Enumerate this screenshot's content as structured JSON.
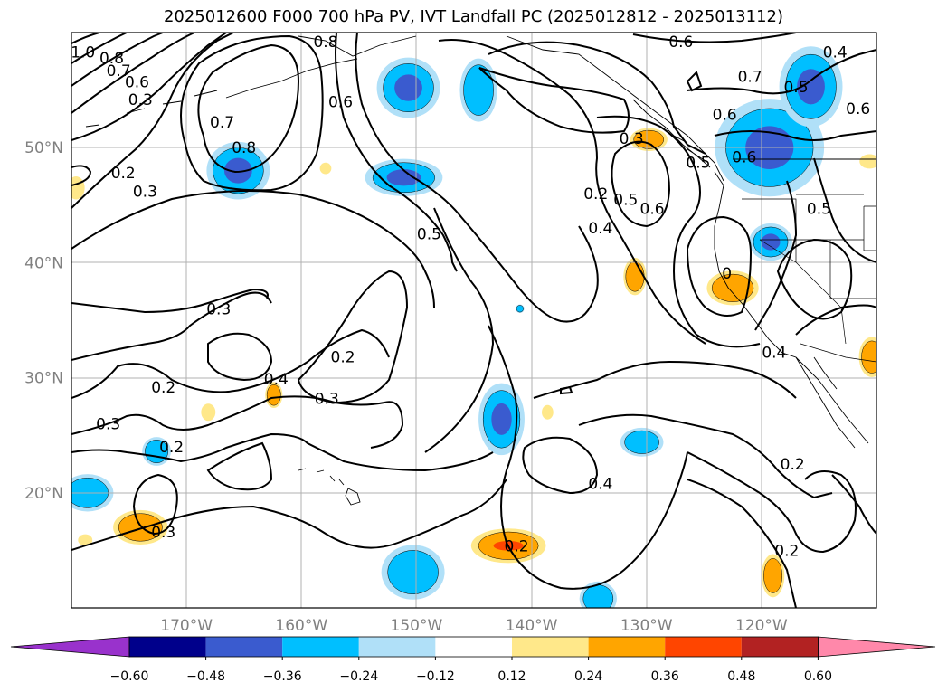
{
  "title": "2025012600 F000 700 hPa PV, IVT Landfall PC (2025012812 - 2025013112)",
  "map": {
    "lon_range": [
      -180,
      -110
    ],
    "lat_range": [
      10,
      60
    ],
    "lat_ticks": [
      {
        "value": 50,
        "label": "50°N"
      },
      {
        "value": 40,
        "label": "40°N"
      },
      {
        "value": 30,
        "label": "30°N"
      },
      {
        "value": 20,
        "label": "20°N"
      }
    ],
    "lon_ticks": [
      {
        "value": -170,
        "label": "170°W"
      },
      {
        "value": -160,
        "label": "160°W"
      },
      {
        "value": -150,
        "label": "150°W"
      },
      {
        "value": -140,
        "label": "140°W"
      },
      {
        "value": -130,
        "label": "130°W"
      },
      {
        "value": -120,
        "label": "120°W"
      }
    ],
    "gridlines": true,
    "contour_labels": [
      {
        "text": "1.0",
        "lon": -179.0,
        "lat": 58.3
      },
      {
        "text": "0.8",
        "lon": -176.5,
        "lat": 57.8
      },
      {
        "text": "0.7",
        "lon": -175.9,
        "lat": 56.7
      },
      {
        "text": "0.6",
        "lon": -174.3,
        "lat": 55.7
      },
      {
        "text": "0.3",
        "lon": -174.0,
        "lat": 54.2
      },
      {
        "text": "0.8",
        "lon": -157.9,
        "lat": 59.2
      },
      {
        "text": "0.6",
        "lon": -156.6,
        "lat": 54.0
      },
      {
        "text": "0.7",
        "lon": -166.9,
        "lat": 52.2
      },
      {
        "text": "0.8",
        "lon": -165.0,
        "lat": 50.0
      },
      {
        "text": "0.2",
        "lon": -175.5,
        "lat": 47.8
      },
      {
        "text": "0.3",
        "lon": -173.6,
        "lat": 46.2
      },
      {
        "text": "0.5",
        "lon": -148.9,
        "lat": 42.5
      },
      {
        "text": "0.3",
        "lon": -131.3,
        "lat": 50.8
      },
      {
        "text": "0.2",
        "lon": -134.4,
        "lat": 46.0
      },
      {
        "text": "0.4",
        "lon": -134.0,
        "lat": 43.0
      },
      {
        "text": "0.5",
        "lon": -131.8,
        "lat": 45.5
      },
      {
        "text": "0.6",
        "lon": -129.5,
        "lat": 44.7
      },
      {
        "text": "0.6",
        "lon": -127.0,
        "lat": 59.2
      },
      {
        "text": "0.7",
        "lon": -121.0,
        "lat": 56.2
      },
      {
        "text": "0.6",
        "lon": -123.2,
        "lat": 52.9
      },
      {
        "text": "0.5",
        "lon": -125.5,
        "lat": 48.7
      },
      {
        "text": "0.6",
        "lon": -121.5,
        "lat": 49.2
      },
      {
        "text": "0.5",
        "lon": -117.0,
        "lat": 55.3
      },
      {
        "text": "0.4",
        "lon": -113.6,
        "lat": 58.3
      },
      {
        "text": "0.6",
        "lon": -111.6,
        "lat": 53.4
      },
      {
        "text": "0.5",
        "lon": -115.0,
        "lat": 44.7
      },
      {
        "text": "0.3",
        "lon": -167.2,
        "lat": 36.0
      },
      {
        "text": "0.2",
        "lon": -156.4,
        "lat": 31.8
      },
      {
        "text": "0.4",
        "lon": -162.2,
        "lat": 29.9
      },
      {
        "text": "0.3",
        "lon": -157.8,
        "lat": 28.2
      },
      {
        "text": "0.2",
        "lon": -172.0,
        "lat": 29.2
      },
      {
        "text": "0.3",
        "lon": -176.8,
        "lat": 26.0
      },
      {
        "text": "0.2",
        "lon": -171.3,
        "lat": 24.0
      },
      {
        "text": "0.3",
        "lon": -172.0,
        "lat": 16.6
      },
      {
        "text": "0.2",
        "lon": -141.3,
        "lat": 15.4
      },
      {
        "text": "0.4",
        "lon": -134.0,
        "lat": 20.8
      },
      {
        "text": "0.4",
        "lon": -118.9,
        "lat": 32.2
      },
      {
        "text": "0.2",
        "lon": -117.3,
        "lat": 22.5
      },
      {
        "text": "0.2",
        "lon": -117.8,
        "lat": 15.0
      },
      {
        "text": "0",
        "lon": -123.0,
        "lat": 39.1
      }
    ],
    "shading": [
      {
        "lon": -150.7,
        "lat": 55.2,
        "rx": 2.2,
        "ry": 2.1,
        "level": -0.48
      },
      {
        "lon": -144.6,
        "lat": 55.0,
        "rx": 1.3,
        "ry": 2.2,
        "level": -0.36
      },
      {
        "lon": -165.5,
        "lat": 48.0,
        "rx": 2.2,
        "ry": 2.0,
        "level": -0.48
      },
      {
        "lon": -151.1,
        "lat": 47.4,
        "rx": 2.7,
        "ry": 1.3,
        "level": -0.48
      },
      {
        "lon": -119.3,
        "lat": 50.0,
        "rx": 3.8,
        "ry": 3.4,
        "level": -0.48
      },
      {
        "lon": -115.7,
        "lat": 55.3,
        "rx": 2.2,
        "ry": 2.8,
        "level": -0.48
      },
      {
        "lon": -119.2,
        "lat": 41.8,
        "rx": 1.5,
        "ry": 1.3,
        "level": -0.48
      },
      {
        "lon": -142.6,
        "lat": 26.4,
        "rx": 1.6,
        "ry": 2.5,
        "level": -0.48
      },
      {
        "lon": -130.4,
        "lat": 24.4,
        "rx": 1.5,
        "ry": 1.0,
        "level": -0.36
      },
      {
        "lon": -172.6,
        "lat": 23.6,
        "rx": 1.0,
        "ry": 1.0,
        "level": -0.36
      },
      {
        "lon": -178.6,
        "lat": 20.0,
        "rx": 1.8,
        "ry": 1.3,
        "level": -0.36
      },
      {
        "lon": -150.3,
        "lat": 13.1,
        "rx": 2.2,
        "ry": 1.9,
        "level": -0.36
      },
      {
        "lon": -134.2,
        "lat": 10.8,
        "rx": 1.3,
        "ry": 1.2,
        "level": -0.36
      },
      {
        "lon": -142.0,
        "lat": 15.4,
        "rx": 2.6,
        "ry": 1.2,
        "level": 0.48
      },
      {
        "lon": -174.0,
        "lat": 17.0,
        "rx": 1.9,
        "ry": 1.2,
        "level": 0.36
      },
      {
        "lon": -131.0,
        "lat": 38.8,
        "rx": 0.8,
        "ry": 1.3,
        "level": 0.36
      },
      {
        "lon": -122.5,
        "lat": 37.8,
        "rx": 1.8,
        "ry": 1.2,
        "level": 0.36
      },
      {
        "lon": -129.8,
        "lat": 50.7,
        "rx": 1.3,
        "ry": 0.8,
        "level": 0.36
      },
      {
        "lon": -119.0,
        "lat": 12.8,
        "rx": 0.8,
        "ry": 1.5,
        "level": 0.36
      },
      {
        "lon": -162.4,
        "lat": 28.5,
        "rx": 0.6,
        "ry": 0.9,
        "level": 0.36
      },
      {
        "lon": -110.4,
        "lat": 31.8,
        "rx": 0.9,
        "ry": 1.4,
        "level": 0.36
      },
      {
        "lon": -110.6,
        "lat": 48.8,
        "rx": 0.7,
        "ry": 0.5,
        "level": 0.24
      },
      {
        "lon": -179.6,
        "lat": 46.5,
        "rx": 0.6,
        "ry": 0.8,
        "level": 0.24
      },
      {
        "lon": -168.1,
        "lat": 27.0,
        "rx": 0.5,
        "ry": 0.6,
        "level": 0.24
      },
      {
        "lon": -138.6,
        "lat": 27.0,
        "rx": 0.4,
        "ry": 0.5,
        "level": 0.24
      },
      {
        "lon": -157.9,
        "lat": 48.2,
        "rx": 0.4,
        "ry": 0.4,
        "level": 0.24
      },
      {
        "lon": -178.8,
        "lat": 15.9,
        "rx": 0.5,
        "ry": 0.4,
        "level": 0.24
      },
      {
        "lon": -141.0,
        "lat": 36.0,
        "rx": 0.3,
        "ry": 0.3,
        "level": -0.36
      }
    ]
  },
  "colorbar": {
    "colors": [
      "#9932cc",
      "#00008b",
      "#3a5bcf",
      "#00bfff",
      "#b0e0f8",
      "#ffffff",
      "#ffe88a",
      "#ffa500",
      "#ff4500",
      "#b22222",
      "#ff88aa"
    ],
    "tick_labels": [
      "−0.60",
      "−0.48",
      "−0.36",
      "−0.24",
      "−0.12",
      "0.12",
      "0.24",
      "0.36",
      "0.48",
      "0.60"
    ]
  }
}
